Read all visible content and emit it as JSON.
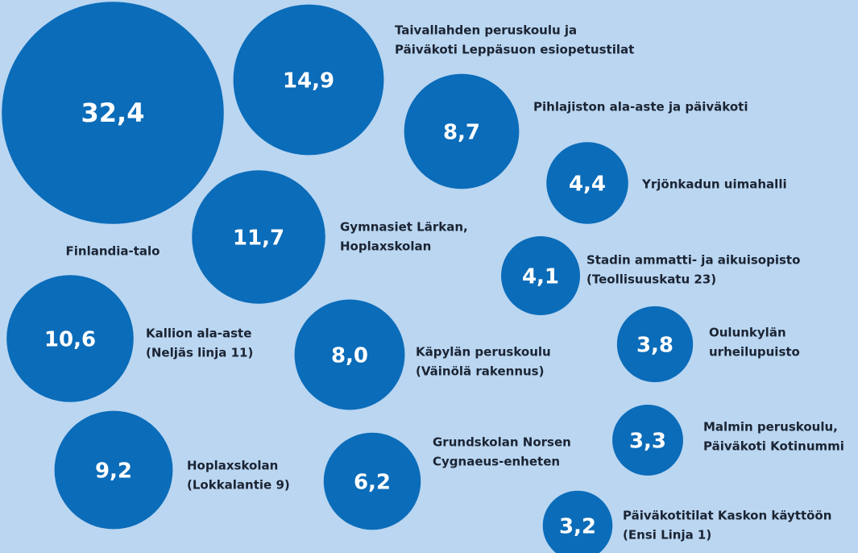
{
  "chart_data": {
    "type": "bubble",
    "color": "#0b6cb9",
    "categories": [
      [
        "Finlandia-talo"
      ],
      [
        "Taivallahden peruskoulu ja",
        "Päiväkoti Leppäsuon esiopetustilat"
      ],
      [
        "Pihlajiston ala-aste ja päiväkoti"
      ],
      [
        "Yrjönkadun uimahalli"
      ],
      [
        "Gymnasiet Lärkan,",
        "Hoplaxskolan"
      ],
      [
        "Stadin ammatti- ja aikuisopisto",
        "(Teollisuuskatu 23)"
      ],
      [
        "Kallion ala-aste",
        "(Neljäs linja 11)"
      ],
      [
        "Käpylän peruskoulu",
        "(Väinölä rakennus)"
      ],
      [
        "Oulunkylän",
        "urheilupuisto"
      ],
      [
        "Malmin peruskoulu,",
        "Päiväkoti Kotinummi"
      ],
      [
        "Hoplaxskolan",
        "(Lokkalantie 9)"
      ],
      [
        "Grundskolan Norsen",
        "Cygnaeus-enheten"
      ],
      [
        "Päiväkotitilat Kaskon käyttöön",
        "(Ensi Linja 1)"
      ]
    ],
    "values": [
      32.4,
      14.9,
      8.7,
      4.4,
      11.7,
      4.1,
      10.6,
      8.0,
      3.8,
      3.3,
      9.2,
      6.2,
      3.2
    ],
    "value_labels": [
      "32,4",
      "14,9",
      "8,7",
      "4,4",
      "11,7",
      "4,1",
      "10,6",
      "8,0",
      "3,8",
      "3,3",
      "9,2",
      "6,2",
      "3,2"
    ]
  }
}
